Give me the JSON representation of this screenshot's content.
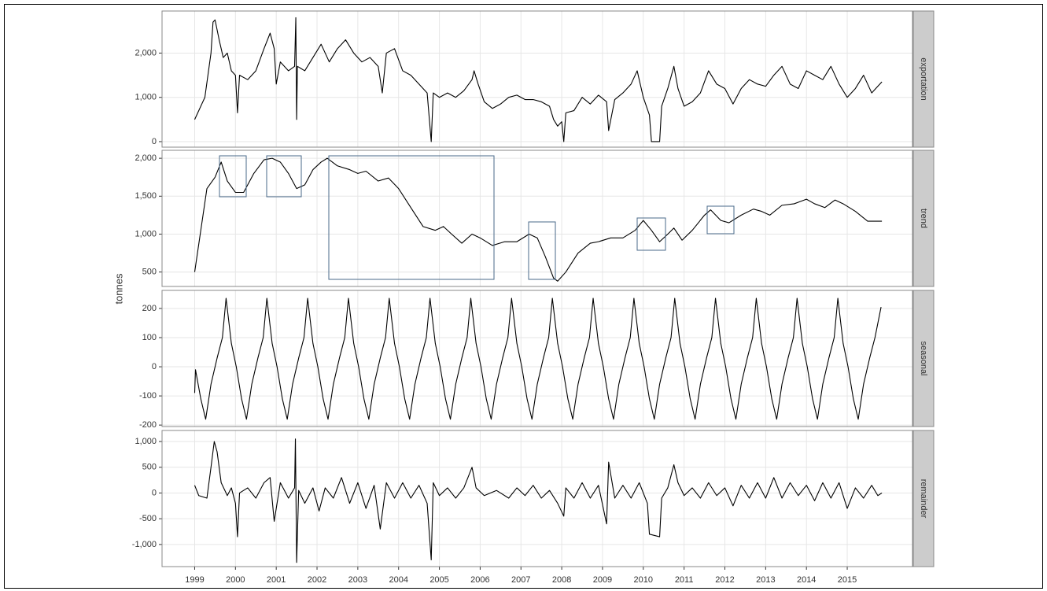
{
  "ylabel": "tonnes",
  "chart_data": [
    {
      "type": "line",
      "strip": "exportation",
      "color": "#000000",
      "grid": true,
      "xlim": [
        1998.2,
        2016.6
      ],
      "xticks": [
        1999,
        2000,
        2001,
        2002,
        2003,
        2004,
        2005,
        2006,
        2007,
        2008,
        2009,
        2010,
        2011,
        2012,
        2013,
        2014,
        2015
      ],
      "ylim": [
        -125,
        2950
      ],
      "yticks": [
        0,
        {
          "value": 1000,
          "label": "1,000"
        },
        {
          "value": 2000,
          "label": "2,000"
        }
      ],
      "x": [
        1999.0,
        1999.1,
        1999.25,
        1999.4,
        1999.45,
        1999.5,
        1999.6,
        1999.7,
        1999.8,
        1999.9,
        2000.0,
        2000.05,
        2000.1,
        2000.3,
        2000.5,
        2000.7,
        2000.85,
        2000.95,
        2001.0,
        2001.1,
        2001.3,
        2001.45,
        2001.48,
        2001.5,
        2001.52,
        2001.7,
        2001.9,
        2002.1,
        2002.3,
        2002.5,
        2002.7,
        2002.9,
        2003.1,
        2003.3,
        2003.5,
        2003.6,
        2003.7,
        2003.9,
        2004.1,
        2004.3,
        2004.5,
        2004.7,
        2004.8,
        2004.85,
        2005.0,
        2005.2,
        2005.4,
        2005.6,
        2005.8,
        2005.85,
        2005.95,
        2006.1,
        2006.3,
        2006.5,
        2006.7,
        2006.9,
        2007.1,
        2007.3,
        2007.5,
        2007.7,
        2007.8,
        2007.9,
        2008.0,
        2008.05,
        2008.1,
        2008.3,
        2008.5,
        2008.7,
        2008.9,
        2009.1,
        2009.15,
        2009.3,
        2009.5,
        2009.7,
        2009.85,
        2010.0,
        2010.15,
        2010.2,
        2010.4,
        2010.45,
        2010.6,
        2010.75,
        2010.85,
        2011.0,
        2011.2,
        2011.4,
        2011.6,
        2011.8,
        2012.0,
        2012.2,
        2012.4,
        2012.6,
        2012.8,
        2013.0,
        2013.2,
        2013.4,
        2013.6,
        2013.8,
        2014.0,
        2014.2,
        2014.4,
        2014.6,
        2014.8,
        2015.0,
        2015.2,
        2015.4,
        2015.6,
        2015.75,
        2015.85
      ],
      "values": [
        500,
        700,
        1000,
        2000,
        2700,
        2750,
        2300,
        1900,
        2000,
        1600,
        1500,
        650,
        1500,
        1400,
        1600,
        2100,
        2450,
        2100,
        1300,
        1800,
        1600,
        1700,
        2800,
        500,
        1700,
        1600,
        1900,
        2200,
        1800,
        2100,
        2300,
        2000,
        1800,
        1900,
        1700,
        1100,
        2000,
        2100,
        1600,
        1500,
        1300,
        1100,
        0,
        1100,
        1000,
        1100,
        1000,
        1150,
        1400,
        1600,
        1300,
        900,
        750,
        850,
        1000,
        1050,
        950,
        950,
        900,
        800,
        500,
        350,
        450,
        0,
        650,
        700,
        1000,
        850,
        1050,
        900,
        250,
        950,
        1100,
        1300,
        1600,
        1000,
        600,
        0,
        0,
        800,
        1200,
        1700,
        1200,
        800,
        900,
        1100,
        1600,
        1300,
        1200,
        850,
        1200,
        1400,
        1300,
        1250,
        1500,
        1700,
        1300,
        1200,
        1600,
        1500,
        1400,
        1700,
        1300,
        1000,
        1200,
        1500,
        1100,
        1250,
        1350
      ]
    },
    {
      "type": "line",
      "strip": "trend",
      "color": "#000000",
      "grid": true,
      "xlim": [
        1998.2,
        2016.6
      ],
      "xticks": [
        1999,
        2000,
        2001,
        2002,
        2003,
        2004,
        2005,
        2006,
        2007,
        2008,
        2009,
        2010,
        2011,
        2012,
        2013,
        2014,
        2015
      ],
      "ylim": [
        310,
        2105
      ],
      "yticks": [
        500,
        {
          "value": 1000,
          "label": "1,000"
        },
        {
          "value": 1500,
          "label": "1,500"
        },
        {
          "value": 2000,
          "label": "2,000"
        }
      ],
      "x": [
        1999.0,
        1999.3,
        1999.5,
        1999.65,
        1999.8,
        2000.0,
        2000.2,
        2000.45,
        2000.7,
        2000.9,
        2001.1,
        2001.3,
        2001.5,
        2001.7,
        2001.9,
        2002.1,
        2002.25,
        2002.5,
        2002.8,
        2003.0,
        2003.2,
        2003.5,
        2003.75,
        2004.0,
        2004.3,
        2004.6,
        2004.9,
        2005.1,
        2005.3,
        2005.55,
        2005.8,
        2006.0,
        2006.3,
        2006.6,
        2006.9,
        2007.2,
        2007.4,
        2007.6,
        2007.8,
        2007.9,
        2008.1,
        2008.4,
        2008.7,
        2008.9,
        2009.2,
        2009.5,
        2009.8,
        2010.0,
        2010.2,
        2010.4,
        2010.6,
        2010.75,
        2010.95,
        2011.2,
        2011.5,
        2011.65,
        2011.9,
        2012.1,
        2012.4,
        2012.7,
        2012.9,
        2013.1,
        2013.4,
        2013.7,
        2014.0,
        2014.2,
        2014.45,
        2014.7,
        2014.9,
        2015.2,
        2015.5,
        2015.85
      ],
      "values": [
        500,
        1600,
        1750,
        1950,
        1700,
        1550,
        1550,
        1800,
        1980,
        2000,
        1950,
        1800,
        1600,
        1650,
        1850,
        1950,
        2000,
        1900,
        1850,
        1800,
        1830,
        1700,
        1740,
        1600,
        1350,
        1100,
        1050,
        1100,
        1000,
        880,
        1000,
        950,
        850,
        900,
        900,
        1000,
        950,
        700,
        420,
        380,
        500,
        750,
        880,
        900,
        950,
        950,
        1050,
        1180,
        1050,
        900,
        1000,
        1080,
        920,
        1050,
        1250,
        1320,
        1180,
        1150,
        1250,
        1330,
        1300,
        1250,
        1380,
        1400,
        1460,
        1400,
        1350,
        1450,
        1400,
        1300,
        1170,
        1170
      ]
    },
    {
      "type": "line",
      "strip": "seasonal",
      "color": "#000000",
      "grid": true,
      "xlim": [
        1998.2,
        2016.6
      ],
      "xticks": [
        1999,
        2000,
        2001,
        2002,
        2003,
        2004,
        2005,
        2006,
        2007,
        2008,
        2009,
        2010,
        2011,
        2012,
        2013,
        2014,
        2015
      ],
      "ylim": [
        -205,
        262
      ],
      "yticks": [
        -200,
        -100,
        0,
        100,
        200
      ],
      "x": [
        1999.0,
        1999.02,
        1999.15,
        1999.27,
        1999.4,
        1999.55,
        1999.68,
        1999.77,
        1999.9,
        2000.02,
        2000.15,
        2000.27,
        2000.4,
        2000.55,
        2000.68,
        2000.77,
        2000.9,
        2001.02,
        2001.15,
        2001.27,
        2001.4,
        2001.55,
        2001.68,
        2001.77,
        2001.9,
        2002.02,
        2002.15,
        2002.27,
        2002.4,
        2002.55,
        2002.68,
        2002.77,
        2002.9,
        2003.02,
        2003.15,
        2003.27,
        2003.4,
        2003.55,
        2003.68,
        2003.77,
        2003.9,
        2004.02,
        2004.15,
        2004.27,
        2004.4,
        2004.55,
        2004.68,
        2004.77,
        2004.9,
        2005.02,
        2005.15,
        2005.27,
        2005.4,
        2005.55,
        2005.68,
        2005.77,
        2005.9,
        2006.02,
        2006.15,
        2006.27,
        2006.4,
        2006.55,
        2006.68,
        2006.77,
        2006.9,
        2007.02,
        2007.15,
        2007.27,
        2007.4,
        2007.55,
        2007.68,
        2007.77,
        2007.9,
        2008.02,
        2008.15,
        2008.27,
        2008.4,
        2008.55,
        2008.68,
        2008.77,
        2008.9,
        2009.02,
        2009.15,
        2009.27,
        2009.4,
        2009.55,
        2009.68,
        2009.77,
        2009.9,
        2010.02,
        2010.15,
        2010.27,
        2010.4,
        2010.55,
        2010.68,
        2010.77,
        2010.9,
        2011.02,
        2011.15,
        2011.27,
        2011.4,
        2011.55,
        2011.68,
        2011.77,
        2011.9,
        2012.02,
        2012.15,
        2012.27,
        2012.4,
        2012.55,
        2012.68,
        2012.77,
        2012.9,
        2013.02,
        2013.15,
        2013.27,
        2013.4,
        2013.55,
        2013.68,
        2013.77,
        2013.9,
        2014.02,
        2014.15,
        2014.27,
        2014.4,
        2014.55,
        2014.68,
        2014.77,
        2014.9,
        2015.02,
        2015.15,
        2015.27,
        2015.4,
        2015.55,
        2015.68,
        2015.83
      ],
      "values": [
        -90,
        -10,
        -110,
        -180,
        -60,
        30,
        100,
        235,
        80,
        0,
        -110,
        -180,
        -60,
        30,
        100,
        235,
        80,
        0,
        -110,
        -180,
        -60,
        30,
        100,
        235,
        80,
        0,
        -110,
        -180,
        -60,
        30,
        100,
        235,
        80,
        0,
        -110,
        -180,
        -60,
        30,
        100,
        235,
        80,
        0,
        -110,
        -180,
        -60,
        30,
        100,
        235,
        80,
        0,
        -110,
        -180,
        -60,
        30,
        100,
        235,
        80,
        0,
        -110,
        -180,
        -60,
        30,
        100,
        235,
        80,
        0,
        -110,
        -180,
        -60,
        30,
        100,
        235,
        80,
        0,
        -110,
        -180,
        -60,
        30,
        100,
        235,
        80,
        0,
        -110,
        -180,
        -60,
        30,
        100,
        235,
        80,
        0,
        -110,
        -180,
        -60,
        30,
        100,
        235,
        80,
        0,
        -110,
        -180,
        -60,
        30,
        100,
        235,
        80,
        0,
        -110,
        -180,
        -60,
        30,
        100,
        235,
        80,
        0,
        -110,
        -180,
        -60,
        30,
        100,
        235,
        80,
        0,
        -110,
        -180,
        -60,
        30,
        100,
        235,
        80,
        0,
        -110,
        -180,
        -60,
        30,
        100,
        205
      ]
    },
    {
      "type": "line",
      "strip": "remainder",
      "color": "#000000",
      "grid": true,
      "xlabels": true,
      "xlim": [
        1998.2,
        2016.6
      ],
      "xticks": [
        1999,
        2000,
        2001,
        2002,
        2003,
        2004,
        2005,
        2006,
        2007,
        2008,
        2009,
        2010,
        2011,
        2012,
        2013,
        2014,
        2015
      ],
      "ylim": [
        -1430,
        1215
      ],
      "yticks": [
        {
          "value": -1000,
          "label": "-1,000"
        },
        -500,
        0,
        500,
        {
          "value": 1000,
          "label": "1,000"
        }
      ],
      "x": [
        1999.0,
        1999.1,
        1999.3,
        1999.4,
        1999.48,
        1999.55,
        1999.65,
        1999.8,
        1999.9,
        2000.0,
        2000.05,
        2000.1,
        2000.3,
        2000.5,
        2000.7,
        2000.85,
        2000.95,
        2001.1,
        2001.3,
        2001.45,
        2001.47,
        2001.5,
        2001.55,
        2001.7,
        2001.9,
        2002.05,
        2002.2,
        2002.4,
        2002.6,
        2002.8,
        2003.0,
        2003.2,
        2003.4,
        2003.55,
        2003.7,
        2003.9,
        2004.1,
        2004.3,
        2004.5,
        2004.7,
        2004.8,
        2004.85,
        2005.0,
        2005.2,
        2005.4,
        2005.6,
        2005.8,
        2005.9,
        2006.1,
        2006.4,
        2006.7,
        2006.9,
        2007.1,
        2007.3,
        2007.5,
        2007.7,
        2007.9,
        2008.05,
        2008.1,
        2008.3,
        2008.5,
        2008.7,
        2008.9,
        2009.1,
        2009.15,
        2009.3,
        2009.5,
        2009.7,
        2009.9,
        2010.1,
        2010.15,
        2010.4,
        2010.45,
        2010.6,
        2010.75,
        2010.85,
        2011.0,
        2011.2,
        2011.4,
        2011.6,
        2011.8,
        2012.0,
        2012.2,
        2012.4,
        2012.6,
        2012.8,
        2013.0,
        2013.2,
        2013.4,
        2013.6,
        2013.8,
        2014.0,
        2014.2,
        2014.4,
        2014.6,
        2014.8,
        2015.0,
        2015.2,
        2015.4,
        2015.6,
        2015.75,
        2015.85
      ],
      "values": [
        150,
        -50,
        -100,
        500,
        1000,
        800,
        200,
        -50,
        100,
        -200,
        -850,
        0,
        100,
        -100,
        200,
        300,
        -550,
        200,
        -100,
        100,
        1050,
        -1350,
        50,
        -200,
        100,
        -350,
        100,
        -100,
        300,
        -200,
        200,
        -300,
        150,
        -700,
        200,
        -100,
        200,
        -100,
        150,
        -200,
        -1300,
        200,
        -50,
        100,
        -100,
        100,
        500,
        100,
        -50,
        50,
        -100,
        100,
        -50,
        150,
        -100,
        50,
        -200,
        -450,
        100,
        -100,
        200,
        -100,
        150,
        -600,
        600,
        -100,
        150,
        -100,
        200,
        -200,
        -800,
        -850,
        -100,
        100,
        550,
        200,
        -50,
        100,
        -100,
        200,
        -50,
        100,
        -250,
        150,
        -100,
        200,
        -100,
        300,
        -100,
        200,
        -50,
        150,
        -150,
        200,
        -100,
        200,
        -300,
        100,
        -100,
        150,
        -50,
        0
      ]
    }
  ]
}
